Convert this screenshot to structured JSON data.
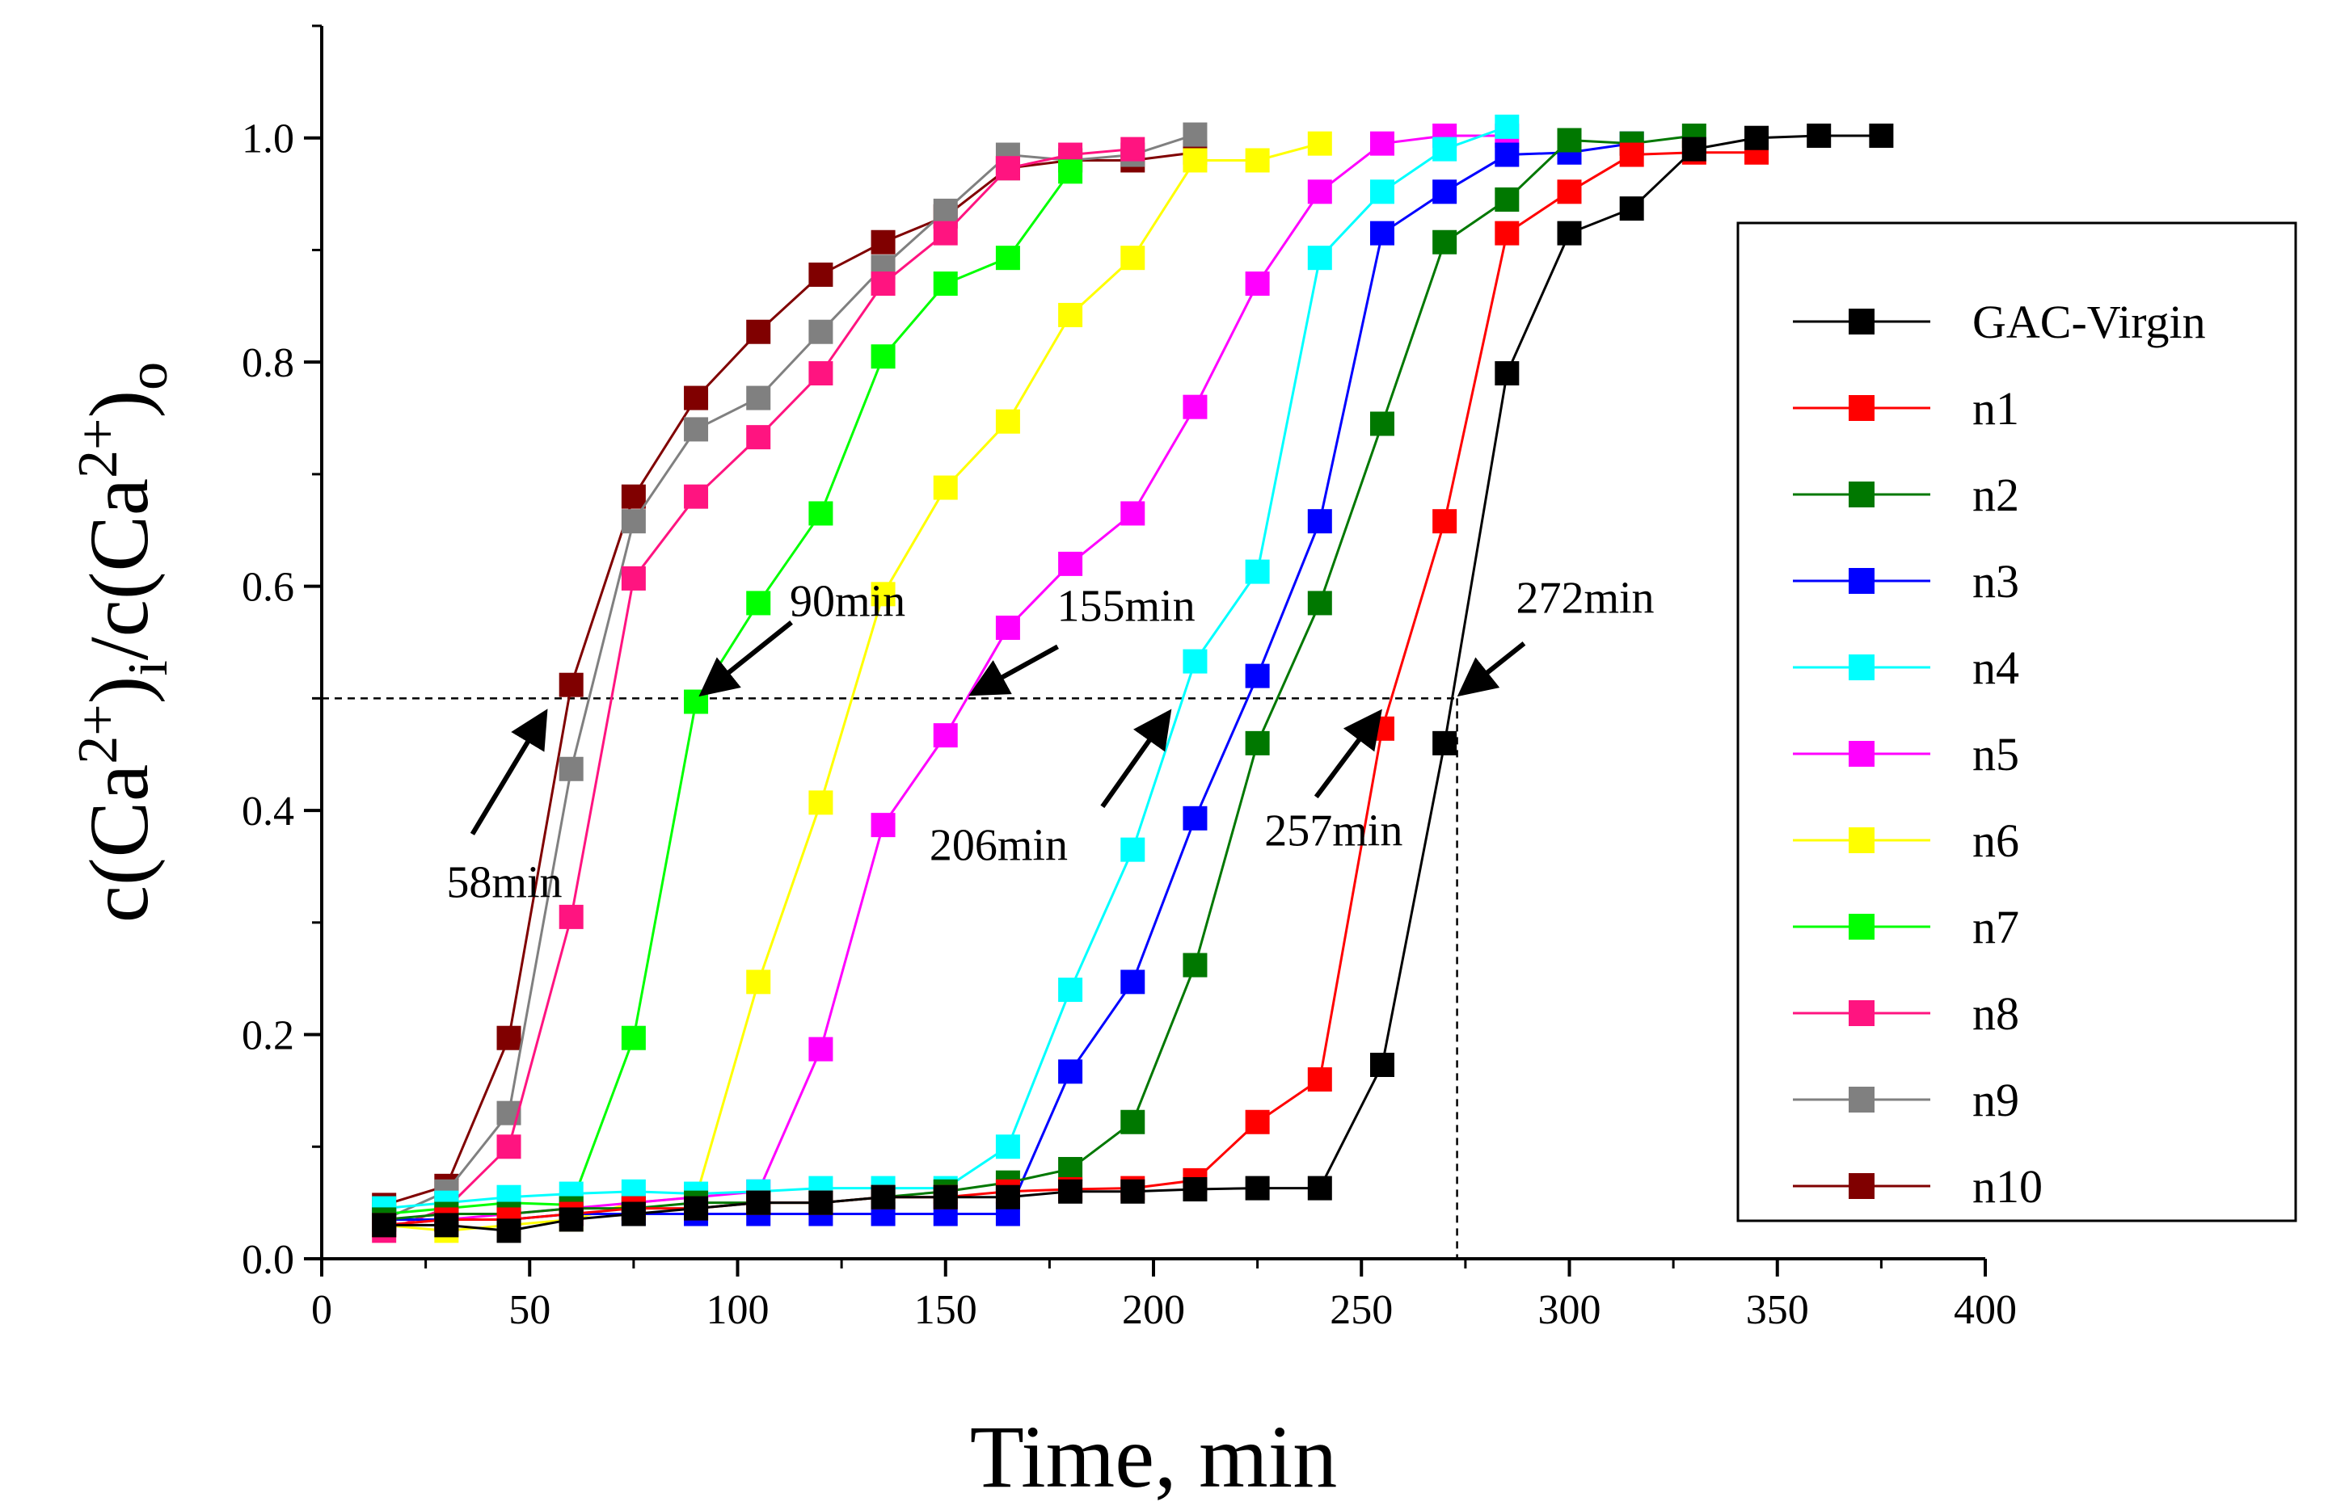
{
  "chart_data": {
    "type": "line",
    "title": "",
    "xlabel": "Time, min",
    "ylabel": {
      "text": "c(Ca2+)i/c(Ca2+)o",
      "part1": "c(Ca",
      "sup1": "2+",
      "part2": ")",
      "sub1": "i",
      "part3": "/c(Ca",
      "sup2": "2+",
      "part4": ")",
      "sub2": "o"
    },
    "xlim": [
      0,
      400
    ],
    "ylim": [
      0,
      1.1
    ],
    "xticks": [
      0,
      50,
      100,
      150,
      200,
      250,
      300,
      350,
      400
    ],
    "yticks": [
      0.0,
      0.2,
      0.4,
      0.6,
      0.8,
      1.0
    ],
    "xtick_labels": [
      "0",
      "50",
      "100",
      "150",
      "200",
      "250",
      "300",
      "350",
      "400"
    ],
    "ytick_labels": [
      "0.0",
      "0.2",
      "0.4",
      "0.6",
      "0.8",
      "1.0"
    ],
    "reference_line": {
      "y": 0.5,
      "x_end": 273
    },
    "annotations": [
      {
        "text": "58min",
        "point": [
          58,
          0.5
        ]
      },
      {
        "text": "90min",
        "point": [
          90,
          0.5
        ]
      },
      {
        "text": "155min",
        "point": [
          155,
          0.5
        ]
      },
      {
        "text": "206min",
        "point": [
          206,
          0.5
        ]
      },
      {
        "text": "257min",
        "point": [
          257,
          0.5
        ]
      },
      {
        "text": "272min",
        "point": [
          272,
          0.5
        ]
      }
    ],
    "legend_position": "right",
    "series": [
      {
        "name": "GAC-Virgin",
        "color": "#000000",
        "x": [
          15,
          30,
          45,
          60,
          75,
          90,
          105,
          120,
          135,
          150,
          165,
          180,
          195,
          210,
          225,
          240,
          255,
          270,
          285,
          300,
          315,
          330,
          345,
          360,
          375
        ],
        "y": [
          0.03,
          0.03,
          0.025,
          0.035,
          0.04,
          0.045,
          0.05,
          0.05,
          0.055,
          0.055,
          0.055,
          0.06,
          0.06,
          0.062,
          0.063,
          0.063,
          0.173,
          0.46,
          0.79,
          0.915,
          0.937,
          0.99,
          1.0,
          1.002,
          1.002
        ]
      },
      {
        "name": "n1",
        "color": "#ff0000",
        "x": [
          15,
          30,
          45,
          60,
          75,
          90,
          105,
          120,
          135,
          150,
          165,
          180,
          195,
          210,
          225,
          240,
          255,
          270,
          285,
          300,
          315,
          330,
          345
        ],
        "y": [
          0.03,
          0.035,
          0.035,
          0.04,
          0.045,
          0.045,
          0.05,
          0.05,
          0.055,
          0.055,
          0.06,
          0.062,
          0.063,
          0.07,
          0.122,
          0.16,
          0.473,
          0.658,
          0.915,
          0.952,
          0.985,
          0.987,
          0.987
        ]
      },
      {
        "name": "n2",
        "color": "#007800",
        "x": [
          15,
          30,
          45,
          60,
          75,
          90,
          105,
          120,
          135,
          150,
          165,
          180,
          195,
          210,
          225,
          240,
          255,
          270,
          285,
          300,
          315,
          330
        ],
        "y": [
          0.035,
          0.04,
          0.04,
          0.045,
          0.045,
          0.05,
          0.05,
          0.05,
          0.055,
          0.06,
          0.068,
          0.08,
          0.122,
          0.262,
          0.46,
          0.585,
          0.745,
          0.907,
          0.945,
          0.998,
          0.995,
          1.002
        ]
      },
      {
        "name": "n3",
        "color": "#0000ff",
        "x": [
          15,
          30,
          45,
          60,
          75,
          90,
          105,
          120,
          135,
          150,
          165,
          180,
          195,
          210,
          225,
          240,
          255,
          270,
          285,
          300,
          315
        ],
        "y": [
          0.035,
          0.035,
          0.035,
          0.04,
          0.04,
          0.04,
          0.04,
          0.04,
          0.04,
          0.04,
          0.04,
          0.167,
          0.247,
          0.393,
          0.52,
          0.658,
          0.915,
          0.952,
          0.985,
          0.987,
          0.995
        ]
      },
      {
        "name": "n4",
        "color": "#00ffff",
        "x": [
          15,
          30,
          45,
          60,
          75,
          90,
          105,
          120,
          135,
          150,
          165,
          180,
          195,
          210,
          225,
          240,
          255,
          270,
          285
        ],
        "y": [
          0.045,
          0.05,
          0.055,
          0.058,
          0.06,
          0.058,
          0.06,
          0.063,
          0.063,
          0.063,
          0.1,
          0.24,
          0.365,
          0.533,
          0.613,
          0.893,
          0.952,
          0.99,
          1.01
        ]
      },
      {
        "name": "n5",
        "color": "#ff00ff",
        "x": [
          15,
          30,
          45,
          60,
          75,
          90,
          105,
          120,
          135,
          150,
          165,
          180,
          195,
          210,
          225,
          240,
          255,
          270,
          285
        ],
        "y": [
          0.03,
          0.035,
          0.04,
          0.045,
          0.05,
          0.055,
          0.06,
          0.187,
          0.387,
          0.467,
          0.563,
          0.62,
          0.665,
          0.76,
          0.87,
          0.952,
          0.995,
          1.002,
          1.002
        ]
      },
      {
        "name": "n6",
        "color": "#ffff00",
        "x": [
          15,
          30,
          45,
          60,
          75,
          90,
          105,
          120,
          135,
          150,
          165,
          180,
          195,
          210,
          225,
          240
        ],
        "y": [
          0.03,
          0.025,
          0.03,
          0.035,
          0.05,
          0.055,
          0.247,
          0.407,
          0.593,
          0.688,
          0.747,
          0.842,
          0.893,
          0.98,
          0.98,
          0.995
        ]
      },
      {
        "name": "n7",
        "color": "#00ff00",
        "x": [
          15,
          30,
          45,
          60,
          75,
          90,
          105,
          120,
          135,
          150,
          165,
          180
        ],
        "y": [
          0.04,
          0.045,
          0.05,
          0.048,
          0.197,
          0.497,
          0.585,
          0.665,
          0.805,
          0.87,
          0.893,
          0.97
        ]
      },
      {
        "name": "n8",
        "color": "#ff1480",
        "x": [
          15,
          30,
          45,
          60,
          75,
          90,
          105,
          120,
          135,
          150,
          165,
          180,
          195
        ],
        "y": [
          0.025,
          0.045,
          0.1,
          0.305,
          0.607,
          0.68,
          0.733,
          0.79,
          0.87,
          0.915,
          0.973,
          0.985,
          0.99
        ]
      },
      {
        "name": "n9",
        "color": "#808080",
        "x": [
          15,
          30,
          45,
          60,
          75,
          90,
          105,
          120,
          135,
          150,
          165,
          180,
          195,
          210
        ],
        "y": [
          0.035,
          0.06,
          0.13,
          0.437,
          0.658,
          0.74,
          0.768,
          0.827,
          0.885,
          0.935,
          0.985,
          0.98,
          0.985,
          1.003
        ]
      },
      {
        "name": "n10",
        "color": "#800000",
        "x": [
          15,
          30,
          45,
          60,
          75,
          90,
          105,
          120,
          135,
          150,
          165,
          180,
          195,
          210
        ],
        "y": [
          0.048,
          0.065,
          0.197,
          0.512,
          0.68,
          0.768,
          0.827,
          0.878,
          0.907,
          0.93,
          0.973,
          0.98,
          0.98,
          0.987
        ]
      }
    ]
  }
}
